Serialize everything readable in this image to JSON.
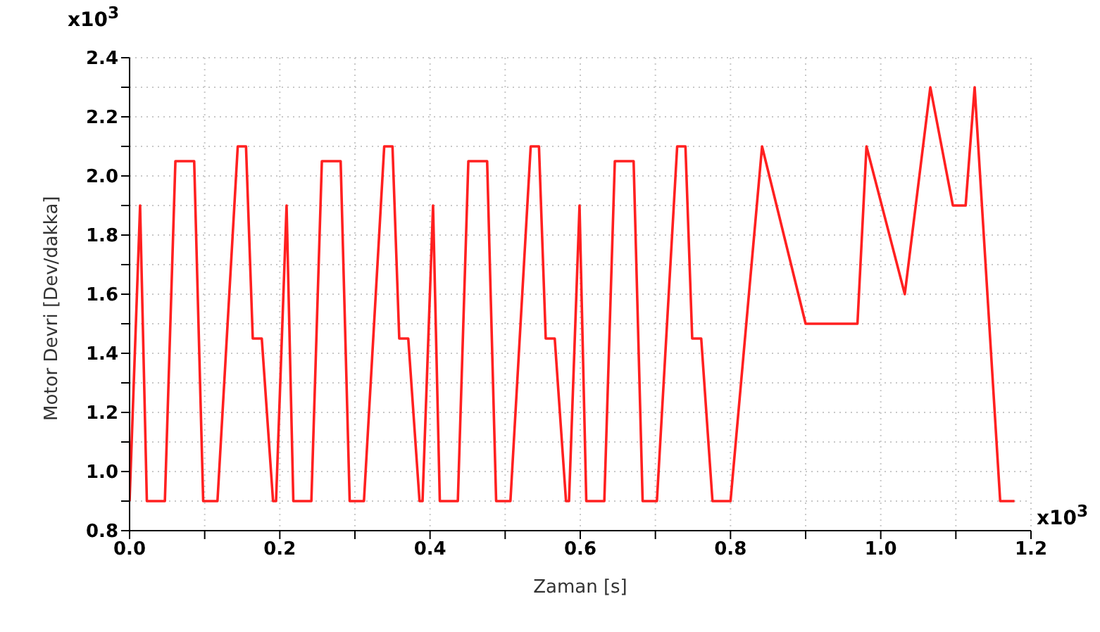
{
  "chart_data": {
    "type": "line",
    "xlabel": "Zaman [s]",
    "ylabel": "Motor Devri [Dev/dakka]",
    "annotations": [
      "x10$^{3}$",
      "x10$^{3}$"
    ],
    "xlim": [
      0,
      1.2
    ],
    "ylim": [
      0.8,
      2.4
    ],
    "xticks": [
      {
        "value": 0,
        "label": "0.0"
      },
      {
        "value": 0.1,
        "label": null
      },
      0.2,
      {
        "value": 0.3,
        "label": null
      },
      0.4,
      {
        "value": 0.5,
        "label": null
      },
      0.6,
      {
        "value": 0.7,
        "label": null
      },
      0.8,
      {
        "value": 0.9,
        "label": null
      },
      {
        "value": 1,
        "label": "1.0"
      },
      {
        "value": 1.1,
        "label": null
      },
      1.2
    ],
    "yticks": [
      0.8,
      {
        "value": 0.9,
        "label": null
      },
      {
        "value": 1,
        "label": "1.0"
      },
      {
        "value": 1.1,
        "label": null
      },
      1.2,
      {
        "value": 1.3,
        "label": null
      },
      1.4,
      {
        "value": 1.5,
        "label": null
      },
      1.6,
      {
        "value": 1.7,
        "label": null
      },
      1.8,
      {
        "value": 1.9,
        "label": null
      },
      {
        "value": 2,
        "label": "2.0"
      },
      {
        "value": 2.1,
        "label": null
      },
      2.2,
      {
        "value": 2.3,
        "label": null
      },
      2.4
    ],
    "grid": true,
    "legend": false,
    "marker": "none",
    "line_style": "solid",
    "series": [
      {
        "color": "#ff2020",
        "x": [
          0,
          0.014,
          0.023,
          0.047,
          0.061,
          0.086,
          0.098,
          0.117,
          0.144,
          0.155,
          0.164,
          0.176,
          0.191,
          0.195,
          0.209,
          0.218,
          0.242,
          0.256,
          0.281,
          0.293,
          0.312,
          0.339,
          0.35,
          0.359,
          0.371,
          0.386,
          0.39,
          0.404,
          0.413,
          0.437,
          0.451,
          0.476,
          0.488,
          0.507,
          0.534,
          0.545,
          0.554,
          0.566,
          0.581,
          0.585,
          0.599,
          0.608,
          0.632,
          0.646,
          0.671,
          0.683,
          0.702,
          0.729,
          0.74,
          0.749,
          0.761,
          0.776,
          0.8,
          0.842,
          0.9,
          0.969,
          0.981,
          1.032,
          1.066,
          1.096,
          1.113,
          1.125,
          1.159,
          1.178
        ],
        "values": [
          0.9,
          1.9,
          0.9,
          0.9,
          2.05,
          2.05,
          0.9,
          0.9,
          2.1,
          2.1,
          1.45,
          1.45,
          0.9,
          0.9,
          1.9,
          0.9,
          0.9,
          2.05,
          2.05,
          0.9,
          0.9,
          2.1,
          2.1,
          1.45,
          1.45,
          0.9,
          0.9,
          1.9,
          0.9,
          0.9,
          2.05,
          2.05,
          0.9,
          0.9,
          2.1,
          2.1,
          1.45,
          1.45,
          0.9,
          0.9,
          1.9,
          0.9,
          0.9,
          2.05,
          2.05,
          0.9,
          0.9,
          2.1,
          2.1,
          1.45,
          1.45,
          0.9,
          0.9,
          2.1,
          1.5,
          1.5,
          2.1,
          1.6,
          2.3,
          1.9,
          1.9,
          2.3,
          0.9,
          0.9
        ]
      }
    ]
  }
}
